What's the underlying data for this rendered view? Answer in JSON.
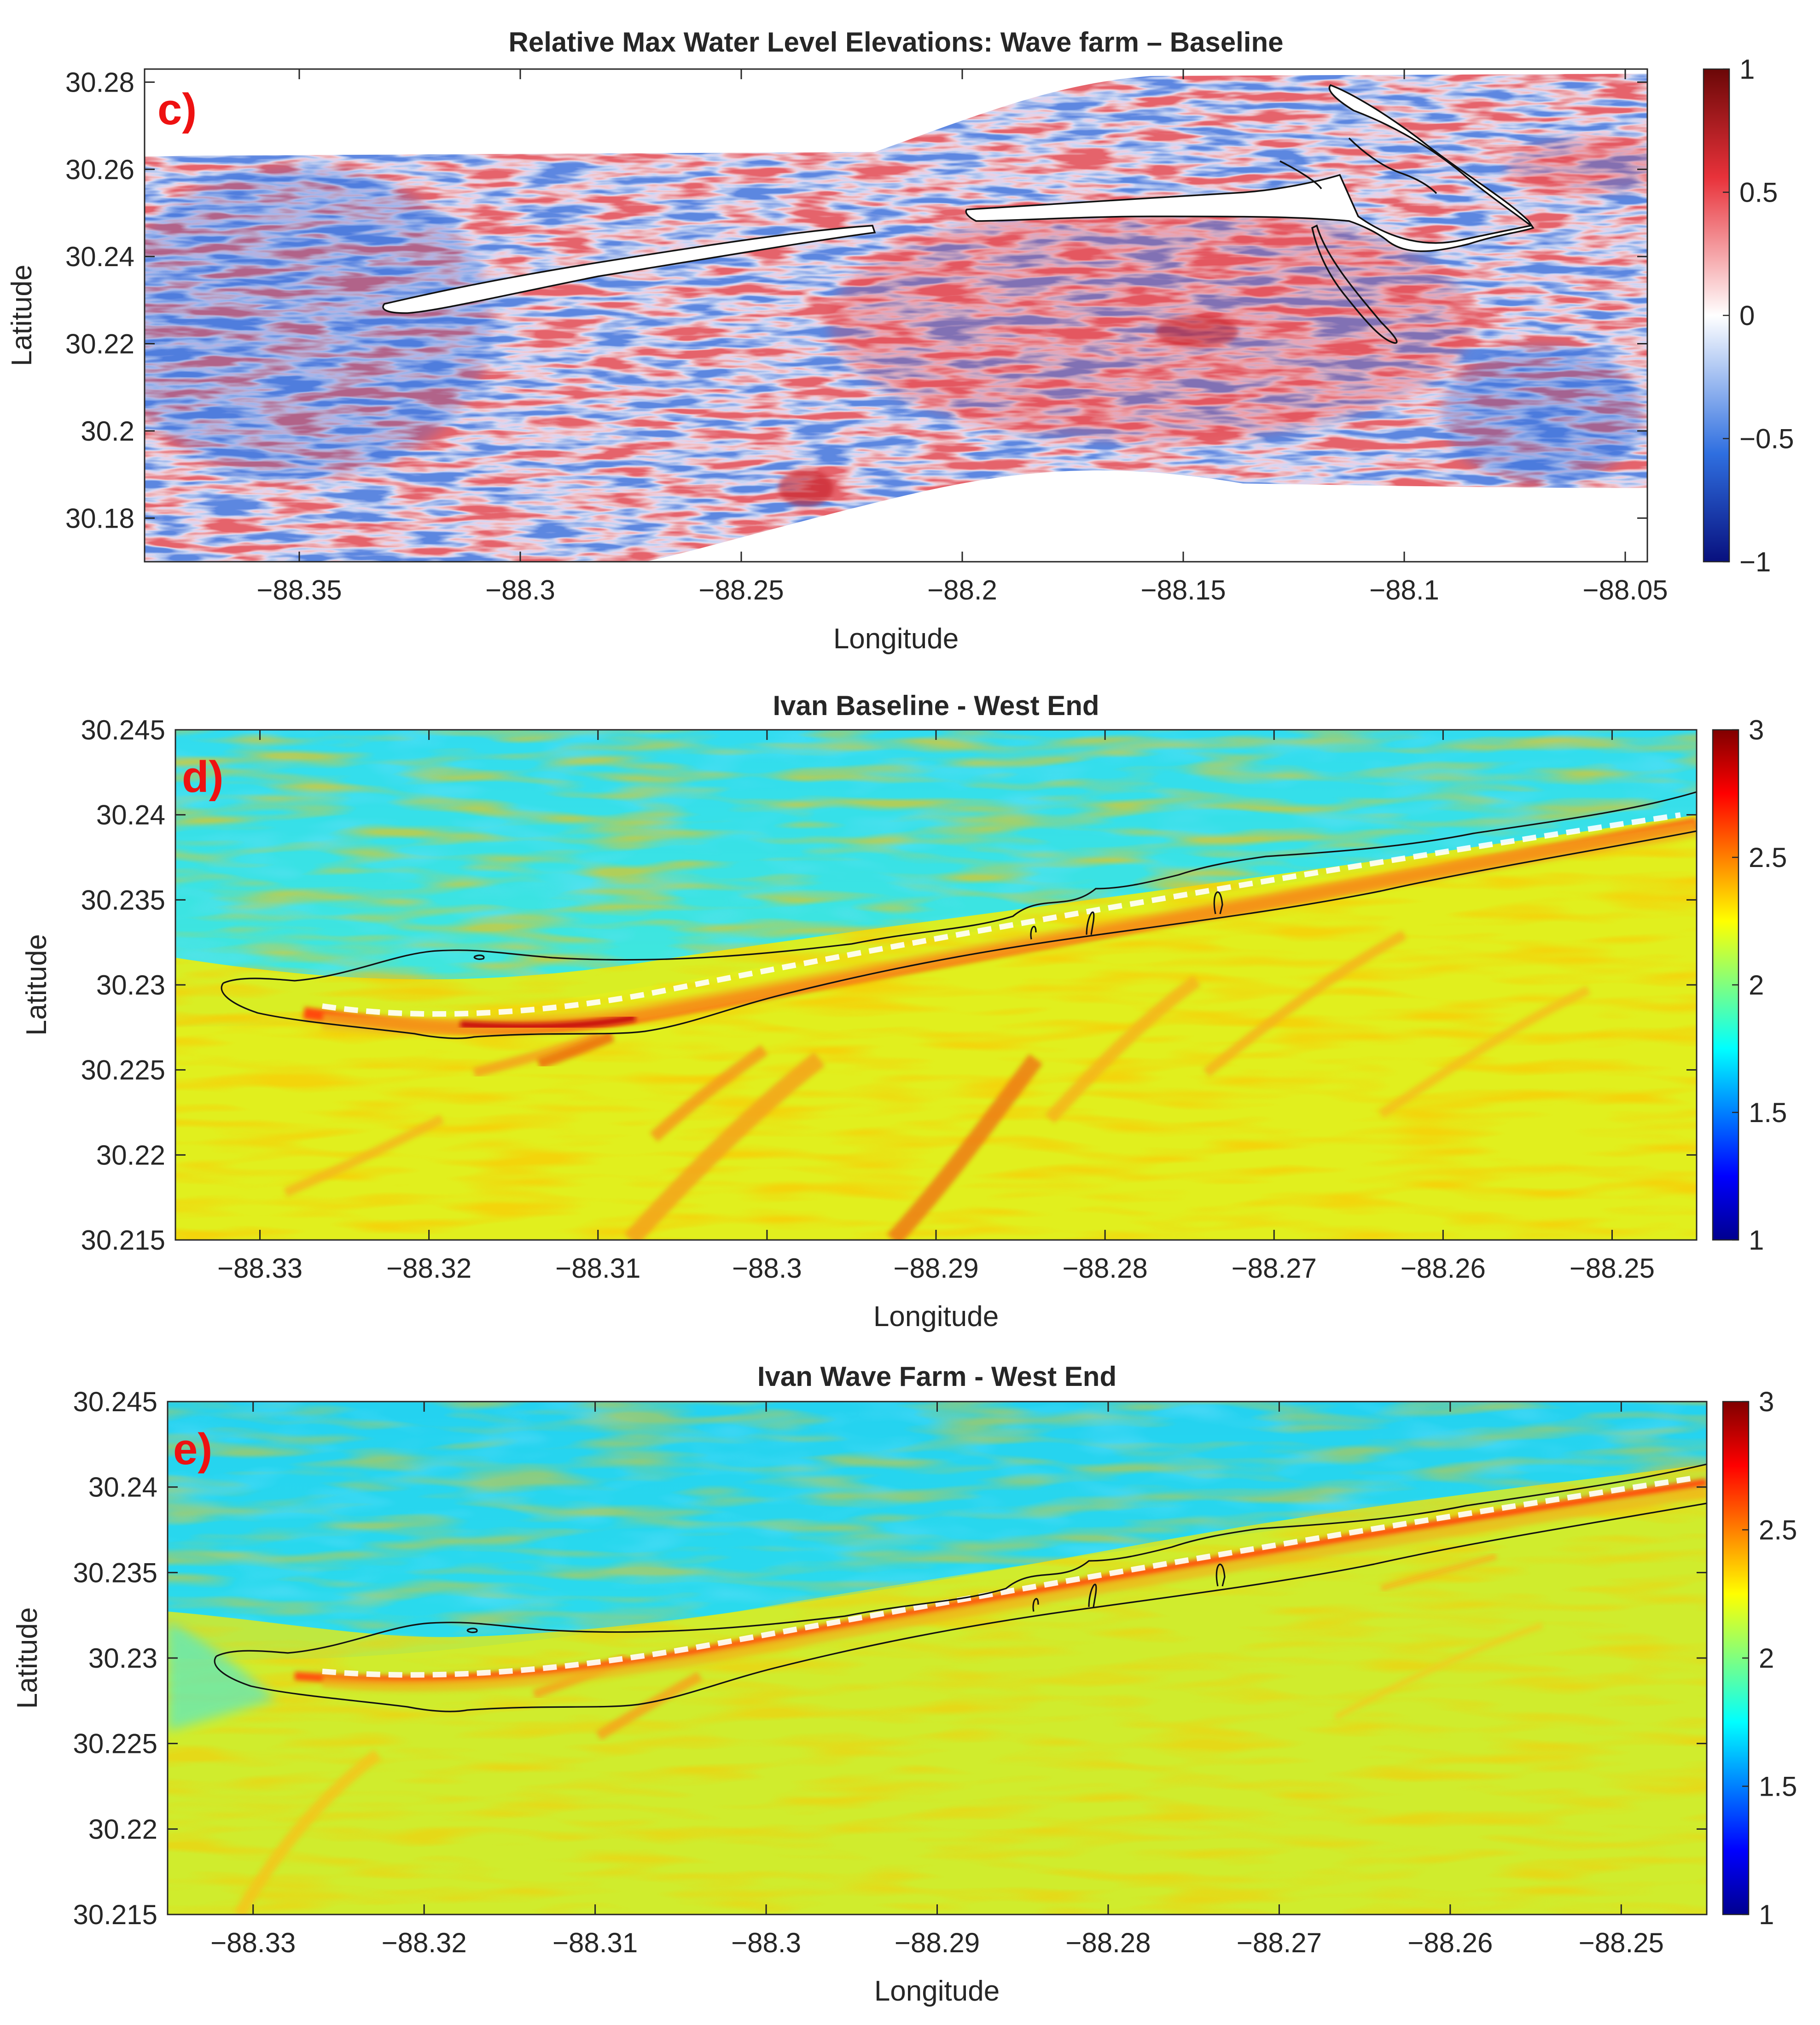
{
  "chart_data": [
    {
      "id": "c",
      "type": "heatmap",
      "panel_label": "c)",
      "title": "Relative Max Water Level Elevations: Wave farm – Baseline",
      "xlabel": "Longitude",
      "ylabel": "Latitude",
      "xlim": [
        -88.385,
        -88.045
      ],
      "ylim": [
        30.17,
        30.283
      ],
      "xticks": [
        -88.35,
        -88.3,
        -88.25,
        -88.2,
        -88.15,
        -88.1,
        -88.05
      ],
      "xtick_labels": [
        "−88.35",
        "−88.3",
        "−88.25",
        "−88.2",
        "−88.15",
        "−88.1",
        "−88.05"
      ],
      "yticks": [
        30.18,
        30.2,
        30.22,
        30.24,
        30.26,
        30.28
      ],
      "ytick_labels": [
        "30.18",
        "30.2",
        "30.22",
        "30.24",
        "30.26",
        "30.28"
      ],
      "colormap": "blue-white-red",
      "clim": [
        -1,
        1
      ],
      "colorbar_ticks": [
        -1,
        -0.5,
        0,
        0.5,
        1
      ],
      "colorbar_tick_labels": [
        "−1",
        "−0.5",
        "0",
        "0.5",
        "1"
      ]
    },
    {
      "id": "d",
      "type": "heatmap",
      "panel_label": "d)",
      "title": "Ivan Baseline - West End",
      "xlabel": "Longitude",
      "ylabel": "Latitude",
      "xlim": [
        -88.335,
        -88.245
      ],
      "ylim": [
        30.215,
        30.245
      ],
      "xticks": [
        -88.33,
        -88.32,
        -88.31,
        -88.3,
        -88.29,
        -88.28,
        -88.27,
        -88.26,
        -88.25
      ],
      "xtick_labels": [
        "−88.33",
        "−88.32",
        "−88.31",
        "−88.3",
        "−88.29",
        "−88.28",
        "−88.27",
        "−88.26",
        "−88.25"
      ],
      "yticks": [
        30.215,
        30.22,
        30.225,
        30.23,
        30.235,
        30.24,
        30.245
      ],
      "ytick_labels": [
        "30.215",
        "30.22",
        "30.225",
        "30.23",
        "30.235",
        "30.24",
        "30.245"
      ],
      "colormap": "jet",
      "clim": [
        1,
        3
      ],
      "colorbar_ticks": [
        1,
        1.5,
        2,
        2.5,
        3
      ],
      "colorbar_tick_labels": [
        "1",
        "1.5",
        "2",
        "2.5",
        "3"
      ]
    },
    {
      "id": "e",
      "type": "heatmap",
      "panel_label": "e)",
      "title": "Ivan Wave Farm - West End",
      "xlabel": "Longitude",
      "ylabel": "Latitude",
      "xlim": [
        -88.335,
        -88.245
      ],
      "ylim": [
        30.215,
        30.245
      ],
      "xticks": [
        -88.33,
        -88.32,
        -88.31,
        -88.3,
        -88.29,
        -88.28,
        -88.27,
        -88.26,
        -88.25
      ],
      "xtick_labels": [
        "−88.33",
        "−88.32",
        "−88.31",
        "−88.3",
        "−88.29",
        "−88.28",
        "−88.27",
        "−88.26",
        "−88.25"
      ],
      "yticks": [
        30.215,
        30.22,
        30.225,
        30.23,
        30.235,
        30.24,
        30.245
      ],
      "ytick_labels": [
        "30.215",
        "30.22",
        "30.225",
        "30.23",
        "30.235",
        "30.24",
        "30.245"
      ],
      "colormap": "jet",
      "clim": [
        1,
        3
      ],
      "colorbar_ticks": [
        1,
        1.5,
        2,
        2.5,
        3
      ],
      "colorbar_tick_labels": [
        "1",
        "1.5",
        "2",
        "2.5",
        "3"
      ]
    }
  ]
}
